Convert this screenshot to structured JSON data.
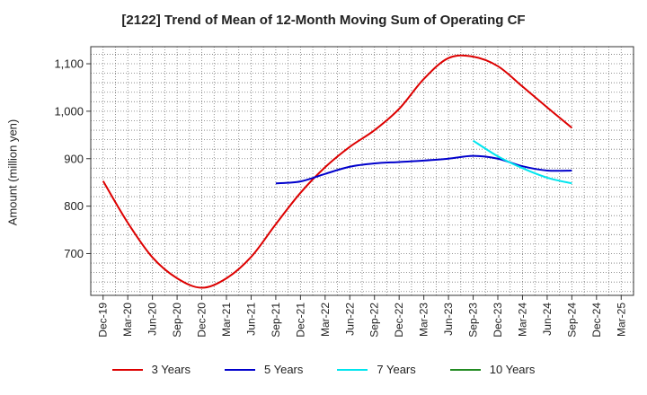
{
  "chart_data": {
    "type": "line",
    "title": "[2122]  Trend of Mean of 12-Month Moving Sum of Operating CF",
    "xlabel": "",
    "ylabel": "Amount (million yen)",
    "x": [
      "Dec-19",
      "Mar-20",
      "Jun-20",
      "Sep-20",
      "Dec-20",
      "Mar-21",
      "Jun-21",
      "Sep-21",
      "Dec-21",
      "Mar-22",
      "Jun-22",
      "Sep-22",
      "Dec-22",
      "Mar-23",
      "Jun-23",
      "Sep-23",
      "Dec-23",
      "Mar-24",
      "Jun-24",
      "Sep-24",
      "Dec-24",
      "Mar-25"
    ],
    "ylim": [
      612,
      1136
    ],
    "yticks": [
      700,
      800,
      900,
      1000,
      1100
    ],
    "ytick_labels": [
      "700",
      "800",
      "900",
      "1,000",
      "1,100"
    ],
    "grid": true,
    "legend_position": "bottom",
    "series": [
      {
        "name": "3 Years",
        "color": "#dd0000",
        "values": [
          853,
          765,
          692,
          648,
          628,
          648,
          693,
          762,
          828,
          882,
          925,
          960,
          1005,
          1068,
          1112,
          1115,
          1095,
          1052,
          1008,
          965,
          null,
          null
        ]
      },
      {
        "name": "5 Years",
        "color": "#0000cc",
        "values": [
          null,
          null,
          null,
          null,
          null,
          null,
          null,
          848,
          852,
          868,
          883,
          890,
          893,
          896,
          900,
          906,
          900,
          884,
          875,
          875,
          null,
          null
        ]
      },
      {
        "name": "7 Years",
        "color": "#00e5ee",
        "values": [
          null,
          null,
          null,
          null,
          null,
          null,
          null,
          null,
          null,
          null,
          null,
          null,
          null,
          null,
          null,
          938,
          905,
          880,
          860,
          848,
          null,
          null
        ]
      },
      {
        "name": "10 Years",
        "color": "#228b22",
        "values": [
          null,
          null,
          null,
          null,
          null,
          null,
          null,
          null,
          null,
          null,
          null,
          null,
          null,
          null,
          null,
          null,
          null,
          null,
          null,
          null,
          null,
          null
        ]
      }
    ]
  }
}
